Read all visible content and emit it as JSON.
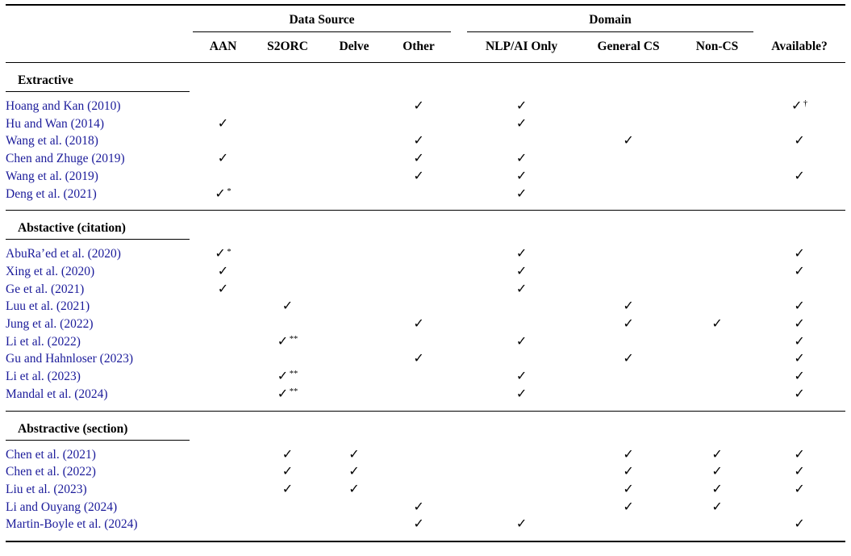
{
  "table": {
    "col_groups": [
      {
        "label": "Data Source",
        "span": 4
      },
      {
        "label": "Domain",
        "span": 3
      }
    ],
    "columns": [
      "AAN",
      "S2ORC",
      "Delve",
      "Other",
      "NLP/AI Only",
      "General CS",
      "Non-CS",
      "Available?"
    ],
    "checkmark": "✓",
    "footnote_symbols": [
      "*",
      "**",
      "†"
    ],
    "sections": [
      {
        "title": "Extractive",
        "rows": [
          {
            "paper": "Hoang and Kan (2010)",
            "marks": [
              "",
              "",
              "",
              "✓",
              "✓",
              "",
              "",
              "✓†"
            ]
          },
          {
            "paper": "Hu and Wan (2014)",
            "marks": [
              "✓",
              "",
              "",
              "",
              "✓",
              "",
              "",
              ""
            ]
          },
          {
            "paper": "Wang et al. (2018)",
            "marks": [
              "",
              "",
              "",
              "✓",
              "",
              "✓",
              "",
              "✓"
            ]
          },
          {
            "paper": "Chen and Zhuge (2019)",
            "marks": [
              "✓",
              "",
              "",
              "✓",
              "✓",
              "",
              "",
              ""
            ]
          },
          {
            "paper": "Wang et al. (2019)",
            "marks": [
              "",
              "",
              "",
              "✓",
              "✓",
              "",
              "",
              "✓"
            ]
          },
          {
            "paper": "Deng et al. (2021)",
            "marks": [
              "✓*",
              "",
              "",
              "",
              "✓",
              "",
              "",
              ""
            ]
          }
        ]
      },
      {
        "title": "Abstactive (citation)",
        "rows": [
          {
            "paper": "AbuRa’ed et al. (2020)",
            "marks": [
              "✓*",
              "",
              "",
              "",
              "✓",
              "",
              "",
              "✓"
            ]
          },
          {
            "paper": "Xing et al. (2020)",
            "marks": [
              "✓",
              "",
              "",
              "",
              "✓",
              "",
              "",
              "✓"
            ]
          },
          {
            "paper": "Ge et al. (2021)",
            "marks": [
              "✓",
              "",
              "",
              "",
              "✓",
              "",
              "",
              ""
            ]
          },
          {
            "paper": "Luu et al. (2021)",
            "marks": [
              "",
              "✓",
              "",
              "",
              "",
              "✓",
              "",
              "✓"
            ]
          },
          {
            "paper": "Jung et al. (2022)",
            "marks": [
              "",
              "",
              "",
              "✓",
              "",
              "✓",
              "✓",
              "✓"
            ]
          },
          {
            "paper": "Li et al. (2022)",
            "marks": [
              "",
              "✓**",
              "",
              "",
              "✓",
              "",
              "",
              "✓"
            ]
          },
          {
            "paper": "Gu and Hahnloser (2023)",
            "marks": [
              "",
              "",
              "",
              "✓",
              "",
              "✓",
              "",
              "✓"
            ]
          },
          {
            "paper": "Li et al. (2023)",
            "marks": [
              "",
              "✓**",
              "",
              "",
              "✓",
              "",
              "",
              "✓"
            ]
          },
          {
            "paper": "Mandal et al. (2024)",
            "marks": [
              "",
              "✓**",
              "",
              "",
              "✓",
              "",
              "",
              "✓"
            ]
          }
        ]
      },
      {
        "title": "Abstractive (section)",
        "rows": [
          {
            "paper": "Chen et al. (2021)",
            "marks": [
              "",
              "✓",
              "✓",
              "",
              "",
              "✓",
              "✓",
              "✓"
            ]
          },
          {
            "paper": "Chen et al. (2022)",
            "marks": [
              "",
              "✓",
              "✓",
              "",
              "",
              "✓",
              "✓",
              "✓"
            ]
          },
          {
            "paper": "Liu et al. (2023)",
            "marks": [
              "",
              "✓",
              "✓",
              "",
              "",
              "✓",
              "✓",
              "✓"
            ]
          },
          {
            "paper": "Li and Ouyang (2024)",
            "marks": [
              "",
              "",
              "",
              "✓",
              "",
              "✓",
              "✓",
              ""
            ]
          },
          {
            "paper": "Martin-Boyle et al. (2024)",
            "marks": [
              "",
              "",
              "",
              "✓",
              "✓",
              "",
              "",
              "✓"
            ]
          }
        ]
      }
    ]
  },
  "colors": {
    "citation_blue": "#1b1b9a",
    "text_black": "#000000",
    "background": "#ffffff",
    "rule_black": "#000000"
  }
}
